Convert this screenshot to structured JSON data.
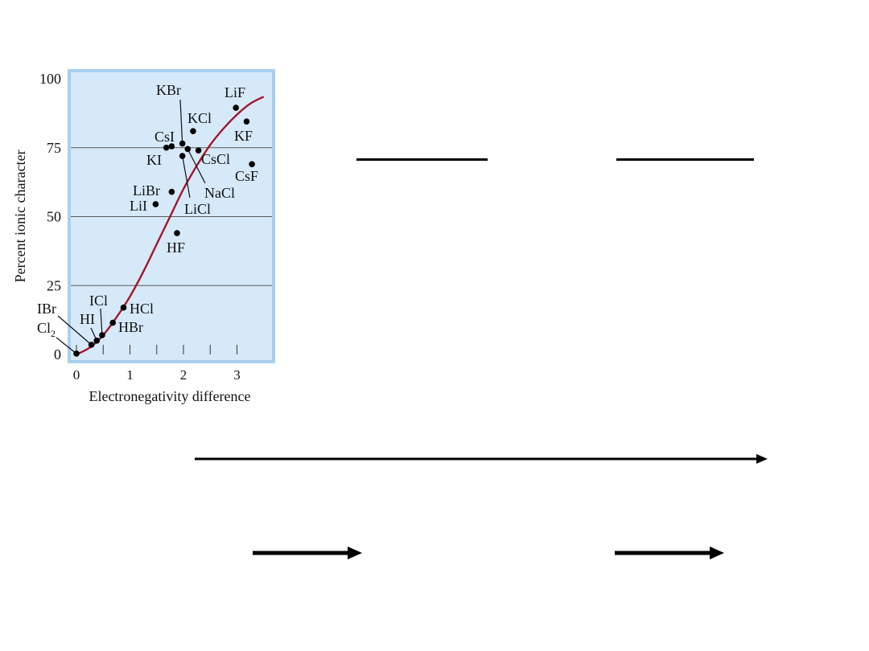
{
  "chart_data": {
    "type": "scatter",
    "title": "",
    "xlabel": "Electronegativity difference",
    "ylabel": "Percent ionic character",
    "xlim": [
      0,
      3.5
    ],
    "ylim": [
      0,
      100
    ],
    "x_ticks": [
      "0",
      "1",
      "2",
      "3"
    ],
    "x_minor_ticks": [
      0.5,
      1.5,
      2.5
    ],
    "y_ticks": [
      "0",
      "25",
      "50",
      "75",
      "100"
    ],
    "gridlines_y": [
      25,
      50,
      75
    ],
    "grid": true,
    "background": "#d6e9f8",
    "frame_color": "#a9cfee",
    "curve_color": "#a3162a",
    "curve": [
      [
        0,
        0
      ],
      [
        0.25,
        2.5
      ],
      [
        0.5,
        7
      ],
      [
        0.75,
        13.5
      ],
      [
        1,
        21
      ],
      [
        1.25,
        30
      ],
      [
        1.5,
        40
      ],
      [
        1.75,
        50
      ],
      [
        2,
        60
      ],
      [
        2.25,
        68.5
      ],
      [
        2.5,
        76
      ],
      [
        2.75,
        82
      ],
      [
        3,
        87
      ],
      [
        3.25,
        91
      ],
      [
        3.5,
        93.5
      ]
    ],
    "points": [
      {
        "name": "Cl",
        "sub": "2",
        "x": 0.0,
        "y": 0.3
      },
      {
        "name": "IBr",
        "sub": "",
        "x": 0.28,
        "y": 3.5
      },
      {
        "name": "HI",
        "sub": "",
        "x": 0.38,
        "y": 5.0
      },
      {
        "name": "ICl",
        "sub": "",
        "x": 0.48,
        "y": 7.0
      },
      {
        "name": "HBr",
        "sub": "",
        "x": 0.68,
        "y": 11.5
      },
      {
        "name": "HCl",
        "sub": "",
        "x": 0.88,
        "y": 17.0
      },
      {
        "name": "HF",
        "sub": "",
        "x": 1.88,
        "y": 44.0
      },
      {
        "name": "LiI",
        "sub": "",
        "x": 1.48,
        "y": 54.5
      },
      {
        "name": "LiBr",
        "sub": "",
        "x": 1.78,
        "y": 59.0
      },
      {
        "name": "KI",
        "sub": "",
        "x": 1.68,
        "y": 75.0
      },
      {
        "name": "CsI",
        "sub": "",
        "x": 1.78,
        "y": 75.5
      },
      {
        "name": "LiCl",
        "sub": "",
        "x": 1.98,
        "y": 72.0
      },
      {
        "name": "KBr",
        "sub": "",
        "x": 1.98,
        "y": 76.5
      },
      {
        "name": "NaCl",
        "sub": "",
        "x": 2.08,
        "y": 74.5
      },
      {
        "name": "KCl",
        "sub": "",
        "x": 2.18,
        "y": 81.0
      },
      {
        "name": "CsCl",
        "sub": "",
        "x": 2.28,
        "y": 74.0
      },
      {
        "name": "LiF",
        "sub": "",
        "x": 2.98,
        "y": 89.5
      },
      {
        "name": "KF",
        "sub": "",
        "x": 3.18,
        "y": 84.5
      },
      {
        "name": "CsF",
        "sub": "",
        "x": 3.28,
        "y": 69.0
      }
    ]
  }
}
